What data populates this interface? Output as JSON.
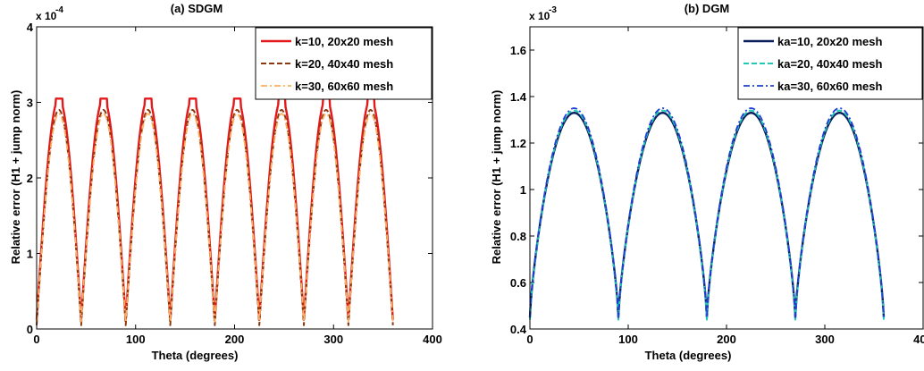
{
  "chart_data": [
    {
      "type": "line",
      "title": "(a) SDGM",
      "xlabel": "Theta (degrees)",
      "ylabel": "Relative error (H1 + jump norm)",
      "y_exponent_base": "x 10",
      "y_exponent": "-4",
      "xlim": [
        0,
        400
      ],
      "ylim": [
        0,
        4
      ],
      "xticks": [
        0,
        100,
        200,
        300,
        400
      ],
      "yticks": [
        0,
        1,
        2,
        3,
        4
      ],
      "xtick_labels": [
        "0",
        "100",
        "200",
        "300",
        "400"
      ],
      "ytick_labels": [
        "0",
        "1",
        "2",
        "3",
        "4"
      ],
      "grid": false,
      "legend_position": "top-right",
      "series": [
        {
          "name": "k=10, 20x20 mesh",
          "color": "#e31a1c",
          "dash": "solid",
          "width": 2.4,
          "peak": 3.05,
          "base": 0.12,
          "period": 45,
          "flat": 3.5
        },
        {
          "name": "k=20, 40x40 mesh",
          "color": "#8b3a0f",
          "dash": "dashed",
          "width": 2.0,
          "peak": 2.9,
          "base": 0.05,
          "period": 45,
          "flat": 0
        },
        {
          "name": "k=30, 60x60 mesh",
          "color": "#fdae61",
          "dash": "dashdot",
          "width": 1.8,
          "peak": 2.85,
          "base": 0.1,
          "period": 45,
          "flat": 0
        }
      ]
    },
    {
      "type": "line",
      "title": "(b) DGM",
      "xlabel": "Theta (degrees)",
      "ylabel": "Relative error (H1 + jump norm)",
      "y_exponent_base": "x 10",
      "y_exponent": "-3",
      "xlim": [
        0,
        400
      ],
      "ylim": [
        0.4,
        1.7
      ],
      "xticks": [
        0,
        100,
        200,
        300,
        400
      ],
      "yticks": [
        0.4,
        0.6,
        0.8,
        1.0,
        1.2,
        1.4,
        1.6
      ],
      "xtick_labels": [
        "0",
        "100",
        "200",
        "300",
        "400"
      ],
      "ytick_labels": [
        "0.4",
        "0.6",
        "0.8",
        "1",
        "1.2",
        "1.4",
        "1.6"
      ],
      "grid": false,
      "legend_position": "top-right",
      "series": [
        {
          "name": "ka=10, 20x20 mesh",
          "color": "#0b1f5c",
          "dash": "solid",
          "width": 2.4,
          "peak": 1.33,
          "base": 0.45,
          "period": 90
        },
        {
          "name": "ka=20, 40x40 mesh",
          "color": "#1fc9b3",
          "dash": "dashed",
          "width": 2.0,
          "peak": 1.34,
          "base": 0.44,
          "period": 90
        },
        {
          "name": "ka=30, 60x60 mesh",
          "color": "#1f3fd6",
          "dash": "dashdot",
          "width": 1.8,
          "peak": 1.35,
          "base": 0.45,
          "period": 90
        }
      ]
    }
  ]
}
